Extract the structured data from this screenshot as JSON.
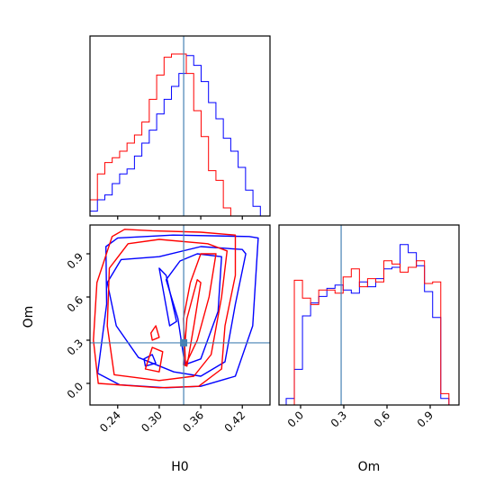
{
  "chart_data": {
    "type": "corner",
    "parameters": [
      "H0",
      "Om"
    ],
    "truths": {
      "H0": 0.3353,
      "Om": 0.2816
    },
    "colors": {
      "series_a": "#0000ff",
      "series_b": "#ff0000",
      "truth": "#4682b4"
    },
    "axes": {
      "H0": {
        "label": "H0",
        "range": [
          0.2,
          0.46
        ],
        "ticks": [
          0.24,
          0.3,
          0.36,
          0.42
        ],
        "tick_labels": [
          "0.24",
          "0.30",
          "0.36",
          "0.42"
        ]
      },
      "Om": {
        "label": "Om",
        "range": [
          -0.15,
          1.1
        ],
        "ticks": [
          0.0,
          0.3,
          0.6,
          0.9
        ],
        "tick_labels": [
          "0.0",
          "0.3",
          "0.6",
          "0.9"
        ]
      }
    },
    "hist_H0": {
      "edges": [
        0.2,
        0.2107,
        0.2214,
        0.2321,
        0.2428,
        0.2535,
        0.2642,
        0.2749,
        0.2856,
        0.2963,
        0.307,
        0.3177,
        0.3284,
        0.3391,
        0.3498,
        0.3605,
        0.3712,
        0.3819,
        0.3926,
        0.4033,
        0.414,
        0.4247,
        0.4354,
        0.4461,
        0.4568
      ],
      "series_a": [
        0.03,
        0.1,
        0.13,
        0.2,
        0.26,
        0.29,
        0.37,
        0.45,
        0.53,
        0.63,
        0.72,
        0.8,
        0.88,
        0.99,
        0.93,
        0.83,
        0.7,
        0.6,
        0.48,
        0.4,
        0.3,
        0.16,
        0.06,
        0.0
      ],
      "series_b": [
        0.1,
        0.26,
        0.33,
        0.36,
        0.4,
        0.45,
        0.5,
        0.58,
        0.72,
        0.87,
        0.98,
        1.0,
        1.0,
        0.88,
        0.65,
        0.49,
        0.28,
        0.22,
        0.05,
        0.0,
        0.0,
        0.0,
        0.0,
        0.0
      ]
    },
    "hist_Om": {
      "edges": [
        -0.1,
        -0.0435,
        0.013,
        0.0695,
        0.126,
        0.1825,
        0.239,
        0.2955,
        0.352,
        0.4085,
        0.465,
        0.5215,
        0.578,
        0.6345,
        0.691,
        0.7475,
        0.804,
        0.8605,
        0.917,
        0.9735,
        1.03,
        1.0865
      ],
      "series_a": [
        0.04,
        0.22,
        0.55,
        0.63,
        0.67,
        0.72,
        0.74,
        0.71,
        0.69,
        0.76,
        0.73,
        0.78,
        0.84,
        0.85,
        0.99,
        0.94,
        0.86,
        0.7,
        0.54,
        0.04,
        0.0
      ],
      "series_b": [
        0.0,
        0.77,
        0.66,
        0.62,
        0.71,
        0.71,
        0.69,
        0.79,
        0.84,
        0.73,
        0.78,
        0.76,
        0.89,
        0.87,
        0.82,
        0.85,
        0.89,
        0.75,
        0.76,
        0.07,
        0.0
      ]
    },
    "contours_2d": {
      "series_a": [
        [
          [
            0.243,
            -0.01
          ],
          [
            0.31,
            -0.03
          ],
          [
            0.36,
            -0.02
          ],
          [
            0.41,
            0.05
          ],
          [
            0.435,
            0.4
          ],
          [
            0.443,
            1.01
          ],
          [
            0.43,
            1.02
          ],
          [
            0.32,
            1.03
          ],
          [
            0.24,
            1.01
          ],
          [
            0.223,
            0.95
          ],
          [
            0.224,
            0.55
          ],
          [
            0.211,
            0.07
          ],
          [
            0.243,
            -0.01
          ]
        ],
        [
          [
            0.321,
            0.08
          ],
          [
            0.36,
            0.05
          ],
          [
            0.395,
            0.15
          ],
          [
            0.41,
            0.55
          ],
          [
            0.425,
            0.9
          ],
          [
            0.42,
            0.93
          ],
          [
            0.36,
            0.95
          ],
          [
            0.3,
            0.88
          ],
          [
            0.245,
            0.86
          ],
          [
            0.225,
            0.7
          ],
          [
            0.238,
            0.4
          ],
          [
            0.27,
            0.18
          ],
          [
            0.321,
            0.08
          ]
        ],
        [
          [
            0.337,
            0.13
          ],
          [
            0.36,
            0.17
          ],
          [
            0.385,
            0.5
          ],
          [
            0.39,
            0.88
          ],
          [
            0.355,
            0.9
          ],
          [
            0.33,
            0.85
          ],
          [
            0.31,
            0.72
          ],
          [
            0.327,
            0.45
          ],
          [
            0.337,
            0.13
          ]
        ],
        [
          [
            0.315,
            0.4
          ],
          [
            0.325,
            0.43
          ],
          [
            0.31,
            0.75
          ],
          [
            0.3,
            0.8
          ],
          [
            0.315,
            0.4
          ]
        ],
        [
          [
            0.28,
            0.12
          ],
          [
            0.295,
            0.14
          ],
          [
            0.29,
            0.2
          ],
          [
            0.278,
            0.17
          ],
          [
            0.28,
            0.12
          ]
        ]
      ],
      "series_b": [
        [
          [
            0.212,
            0.0
          ],
          [
            0.3,
            -0.03
          ],
          [
            0.357,
            -0.02
          ],
          [
            0.39,
            0.1
          ],
          [
            0.395,
            0.4
          ],
          [
            0.41,
            0.75
          ],
          [
            0.41,
            1.03
          ],
          [
            0.36,
            1.05
          ],
          [
            0.29,
            1.06
          ],
          [
            0.25,
            1.07
          ],
          [
            0.232,
            1.02
          ],
          [
            0.21,
            0.7
          ],
          [
            0.205,
            0.3
          ],
          [
            0.212,
            0.0
          ]
        ],
        [
          [
            0.235,
            0.06
          ],
          [
            0.3,
            0.02
          ],
          [
            0.35,
            0.05
          ],
          [
            0.375,
            0.2
          ],
          [
            0.39,
            0.6
          ],
          [
            0.398,
            0.92
          ],
          [
            0.37,
            0.97
          ],
          [
            0.3,
            1.0
          ],
          [
            0.255,
            0.97
          ],
          [
            0.228,
            0.8
          ],
          [
            0.225,
            0.4
          ],
          [
            0.235,
            0.06
          ]
        ],
        [
          [
            0.338,
            0.13
          ],
          [
            0.355,
            0.3
          ],
          [
            0.372,
            0.6
          ],
          [
            0.382,
            0.9
          ],
          [
            0.36,
            0.9
          ],
          [
            0.345,
            0.7
          ],
          [
            0.335,
            0.45
          ],
          [
            0.338,
            0.13
          ]
        ],
        [
          [
            0.335,
            0.13
          ],
          [
            0.34,
            0.12
          ],
          [
            0.35,
            0.4
          ],
          [
            0.36,
            0.7
          ],
          [
            0.355,
            0.72
          ],
          [
            0.34,
            0.45
          ],
          [
            0.335,
            0.13
          ]
        ],
        [
          [
            0.28,
            0.1
          ],
          [
            0.3,
            0.08
          ],
          [
            0.305,
            0.22
          ],
          [
            0.29,
            0.25
          ],
          [
            0.28,
            0.1
          ]
        ],
        [
          [
            0.29,
            0.3
          ],
          [
            0.3,
            0.32
          ],
          [
            0.295,
            0.4
          ],
          [
            0.288,
            0.35
          ],
          [
            0.29,
            0.3
          ]
        ]
      ]
    }
  }
}
